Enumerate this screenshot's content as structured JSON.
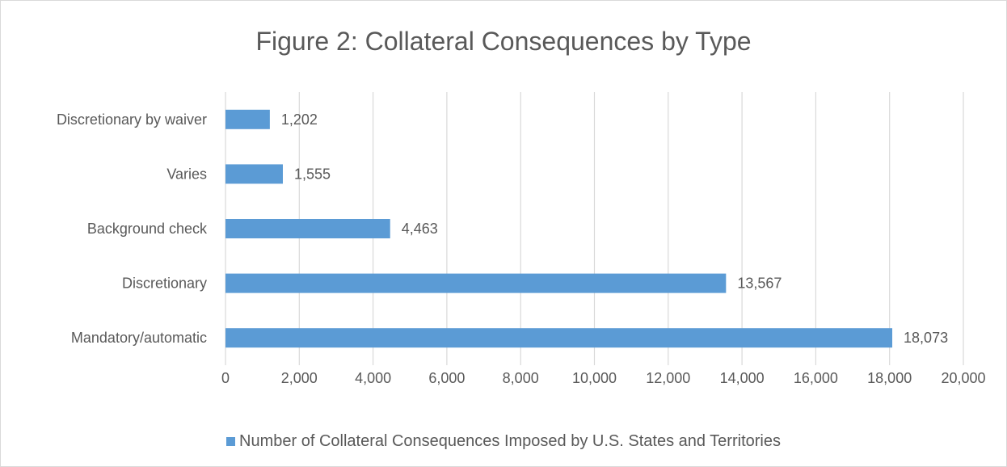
{
  "chart_data": {
    "type": "bar",
    "orientation": "horizontal",
    "title": "Figure 2: Collateral Consequences by Type",
    "categories": [
      "Mandatory/automatic",
      "Discretionary",
      "Background check",
      "Varies",
      "Discretionary by waiver"
    ],
    "series": [
      {
        "name": "Number of Collateral Consequences Imposed by U.S. States and Territories",
        "values": [
          18073,
          13567,
          4463,
          1555,
          1202
        ],
        "labels": [
          "18,073",
          "13,567",
          "4,463",
          "1,555",
          "1,202"
        ],
        "color": "#5b9bd5"
      }
    ],
    "xlim": [
      0,
      20000
    ],
    "x_ticks": [
      0,
      2000,
      4000,
      6000,
      8000,
      10000,
      12000,
      14000,
      16000,
      18000,
      20000
    ],
    "x_tick_labels": [
      "0",
      "2,000",
      "4,000",
      "6,000",
      "8,000",
      "10,000",
      "12,000",
      "14,000",
      "16,000",
      "18,000",
      "20,000"
    ],
    "grid": true,
    "legend_position": "bottom",
    "colors": {
      "text": "#595959",
      "grid": "#d9d9d9",
      "bar": "#5b9bd5"
    }
  }
}
